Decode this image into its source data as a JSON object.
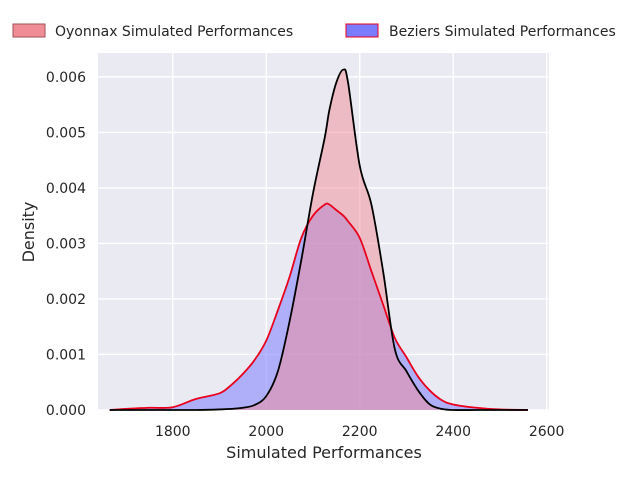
{
  "chart_data": {
    "type": "area",
    "title": "",
    "xlabel": "Simulated Performances",
    "ylabel": "Density",
    "xlim": [
      1640,
      2605
    ],
    "ylim": [
      0,
      0.00643
    ],
    "x_ticks": [
      1800,
      2000,
      2200,
      2400,
      2600
    ],
    "y_ticks": [
      0.0,
      0.001,
      0.002,
      0.003,
      0.004,
      0.005,
      0.006
    ],
    "x_tick_labels": [
      "1800",
      "2000",
      "2200",
      "2400",
      "2600"
    ],
    "y_tick_labels": [
      "0.000",
      "0.001",
      "0.002",
      "0.003",
      "0.004",
      "0.005",
      "0.006"
    ],
    "grid": true,
    "legend_position": "top, outside plot",
    "x": [
      1665,
      1700,
      1750,
      1800,
      1850,
      1900,
      1925,
      1950,
      1975,
      2000,
      2025,
      2050,
      2075,
      2100,
      2125,
      2135,
      2150,
      2165,
      2175,
      2200,
      2225,
      2250,
      2275,
      2300,
      2325,
      2350,
      2375,
      2400,
      2450,
      2500,
      2560
    ],
    "series": [
      {
        "name": "Oyonnax Simulated Performances",
        "fill_color": "#f08c96",
        "line_color": "#000000",
        "values": [
          0,
          0,
          0,
          0,
          0,
          1e-05,
          2e-05,
          4e-05,
          9e-05,
          0.00025,
          0.0007,
          0.0016,
          0.0027,
          0.0039,
          0.0049,
          0.0054,
          0.0059,
          0.00613,
          0.0059,
          0.0044,
          0.0037,
          0.0025,
          0.0011,
          0.0007,
          0.00035,
          0.0001,
          2e-05,
          0,
          0,
          0,
          0
        ]
      },
      {
        "name": "Beziers Simulated Performances",
        "fill_color": "#7b7bff",
        "line_color": "#e8001c",
        "values": [
          0,
          2e-05,
          4e-05,
          5e-05,
          0.0002,
          0.0003,
          0.00045,
          0.00065,
          0.0009,
          0.00125,
          0.0018,
          0.0024,
          0.0031,
          0.0035,
          0.0037,
          0.0037,
          0.0036,
          0.0035,
          0.0034,
          0.0031,
          0.0025,
          0.0019,
          0.0013,
          0.00095,
          0.0006,
          0.00035,
          0.00018,
          0.0001,
          4e-05,
          1e-05,
          0
        ]
      }
    ]
  }
}
